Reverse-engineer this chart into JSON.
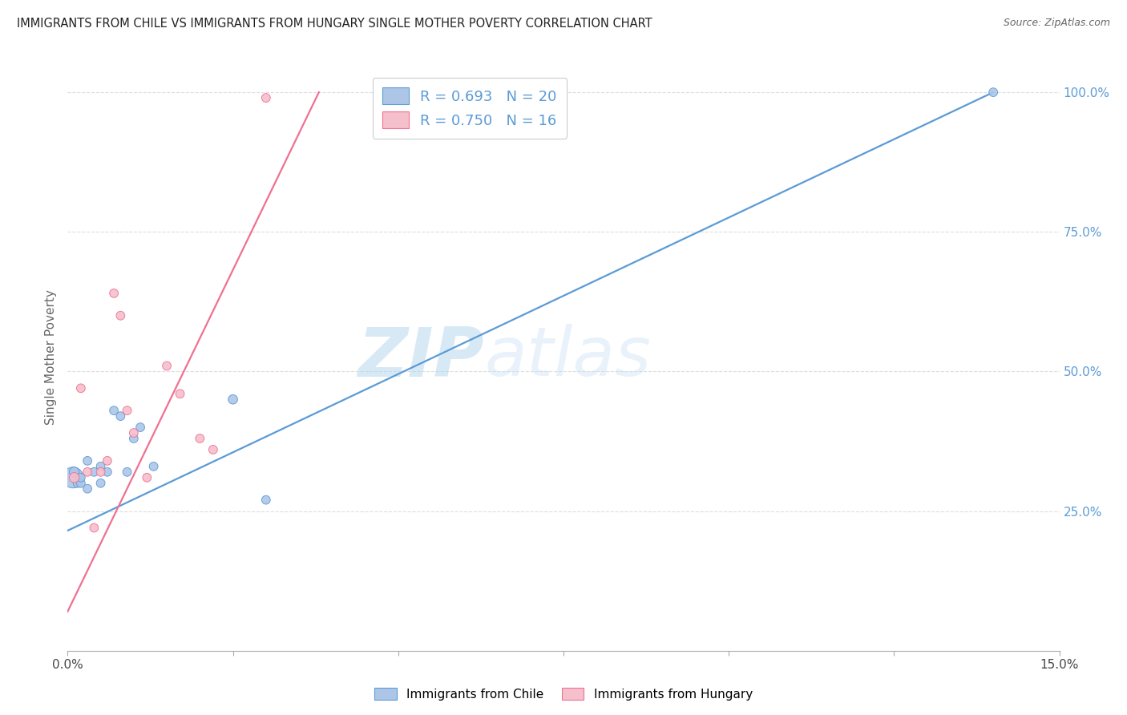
{
  "title": "IMMIGRANTS FROM CHILE VS IMMIGRANTS FROM HUNGARY SINGLE MOTHER POVERTY CORRELATION CHART",
  "source": "Source: ZipAtlas.com",
  "ylabel": "Single Mother Poverty",
  "watermark_zip": "ZIP",
  "watermark_atlas": "atlas",
  "chile_color": "#adc6e8",
  "hungary_color": "#f5bfcc",
  "chile_line_color": "#5b9bd5",
  "hungary_line_color": "#f07090",
  "xlim": [
    0.0,
    0.15
  ],
  "ylim": [
    0.0,
    1.05
  ],
  "chile_scatter_x": [
    0.0008,
    0.001,
    0.0015,
    0.002,
    0.002,
    0.003,
    0.003,
    0.004,
    0.005,
    0.005,
    0.006,
    0.007,
    0.008,
    0.009,
    0.01,
    0.011,
    0.013,
    0.025,
    0.03,
    0.14
  ],
  "chile_scatter_y": [
    0.31,
    0.32,
    0.3,
    0.3,
    0.31,
    0.29,
    0.34,
    0.32,
    0.3,
    0.33,
    0.32,
    0.43,
    0.42,
    0.32,
    0.38,
    0.4,
    0.33,
    0.45,
    0.27,
    1.0
  ],
  "chile_scatter_size": [
    350,
    80,
    60,
    60,
    60,
    60,
    60,
    60,
    60,
    60,
    60,
    60,
    60,
    60,
    60,
    60,
    60,
    70,
    60,
    60
  ],
  "hungary_scatter_x": [
    0.001,
    0.002,
    0.003,
    0.004,
    0.005,
    0.006,
    0.007,
    0.008,
    0.009,
    0.01,
    0.012,
    0.015,
    0.017,
    0.02,
    0.022,
    0.03
  ],
  "hungary_scatter_y": [
    0.31,
    0.47,
    0.32,
    0.22,
    0.32,
    0.34,
    0.64,
    0.6,
    0.43,
    0.39,
    0.31,
    0.51,
    0.46,
    0.38,
    0.36,
    0.99
  ],
  "hungary_scatter_size": [
    80,
    60,
    60,
    60,
    60,
    60,
    60,
    60,
    60,
    60,
    60,
    60,
    60,
    60,
    60,
    60
  ],
  "chile_trend_x": [
    0.0,
    0.14
  ],
  "chile_trend_y": [
    0.215,
    1.0
  ],
  "hungary_trend_x": [
    0.0,
    0.038
  ],
  "hungary_trend_y": [
    0.07,
    1.0
  ],
  "background_color": "#ffffff",
  "grid_color": "#dddddd",
  "yticks": [
    0.0,
    0.25,
    0.5,
    0.75,
    1.0
  ],
  "ytick_labels": [
    "",
    "25.0%",
    "50.0%",
    "75.0%",
    "100.0%"
  ],
  "xtick_positions": [
    0.0,
    0.025,
    0.05,
    0.075,
    0.1,
    0.125,
    0.15
  ],
  "xtick_labels": [
    "0.0%",
    "",
    "",
    "",
    "",
    "",
    "15.0%"
  ]
}
